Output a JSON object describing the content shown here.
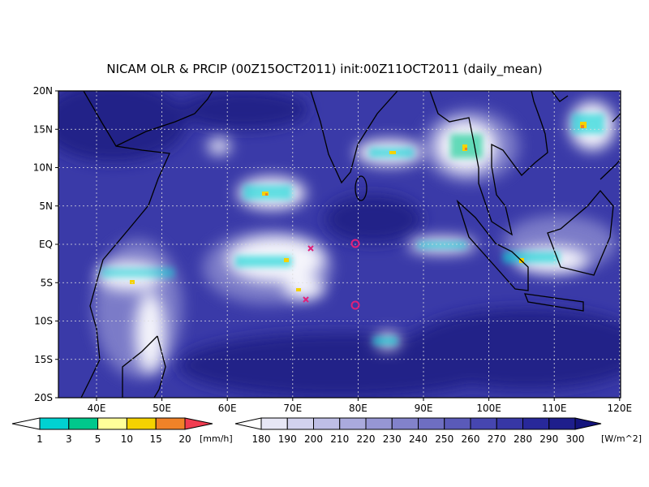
{
  "title": "NICAM OLR & PRCIP (00Z15OCT2011) init:00Z11OCT2011 (daily_mean)",
  "map": {
    "lat_labels": [
      "20N",
      "15N",
      "10N",
      "5N",
      "EQ",
      "5S",
      "10S",
      "15S",
      "20S"
    ],
    "lon_labels": [
      "40E",
      "50E",
      "60E",
      "70E",
      "80E",
      "90E",
      "100E",
      "110E",
      "120E"
    ]
  },
  "legends": [
    {
      "labels": [
        "1",
        "3",
        "5",
        "10",
        "15",
        "20"
      ],
      "unit": "[mm/h]",
      "colors": [
        "#ffffff",
        "#00d2d2",
        "#00c88c",
        "#ffff9a",
        "#f5d200",
        "#f08228",
        "#f03c50"
      ]
    },
    {
      "labels": [
        "180",
        "190",
        "200",
        "210",
        "220",
        "230",
        "240",
        "250",
        "260",
        "270",
        "280",
        "290",
        "300"
      ],
      "unit": "[W/m^2]",
      "colors": [
        "#ffffff",
        "#e6e6f5",
        "#d2d2ee",
        "#bebee6",
        "#aaaadd",
        "#9696d4",
        "#8282cb",
        "#6e6ec2",
        "#5a5ab9",
        "#4646b0",
        "#3737a5",
        "#28289a",
        "#1e1e8c",
        "#14147d"
      ]
    }
  ]
}
